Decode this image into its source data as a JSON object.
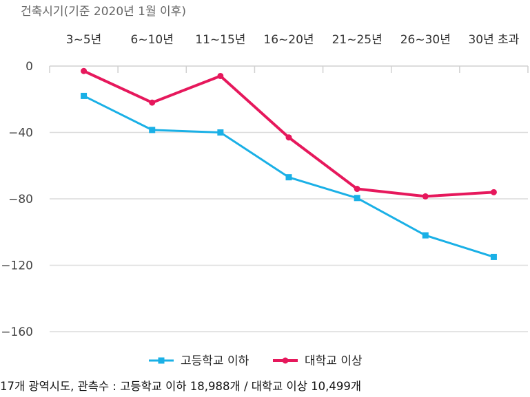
{
  "chart_data": {
    "type": "line",
    "axis_title": "건축시기(기준  2020년 1월 이후)",
    "categories": [
      "3~5년",
      "6~10년",
      "11~15년",
      "16~20년",
      "21~25년",
      "26~30년",
      "30년 초과"
    ],
    "y_ticks": [
      0,
      -40,
      -80,
      -120,
      -160
    ],
    "ylim": [
      -160,
      0
    ],
    "grid": true,
    "legend_position": "bottom",
    "series": [
      {
        "name": "고등학교 이하",
        "color": "#1ab0e6",
        "marker": "square",
        "values": [
          -18,
          -38.5,
          -40,
          -67,
          -79.5,
          -102,
          -115
        ]
      },
      {
        "name": "대학교 이상",
        "color": "#e6185c",
        "marker": "circle",
        "values": [
          -3,
          -22,
          -6,
          -43,
          -74,
          -78.5,
          -76
        ]
      }
    ]
  },
  "footnote": "17개 광역시도, 관측수 : 고등학교 이하 18,988개 / 대학교 이상 10,499개"
}
